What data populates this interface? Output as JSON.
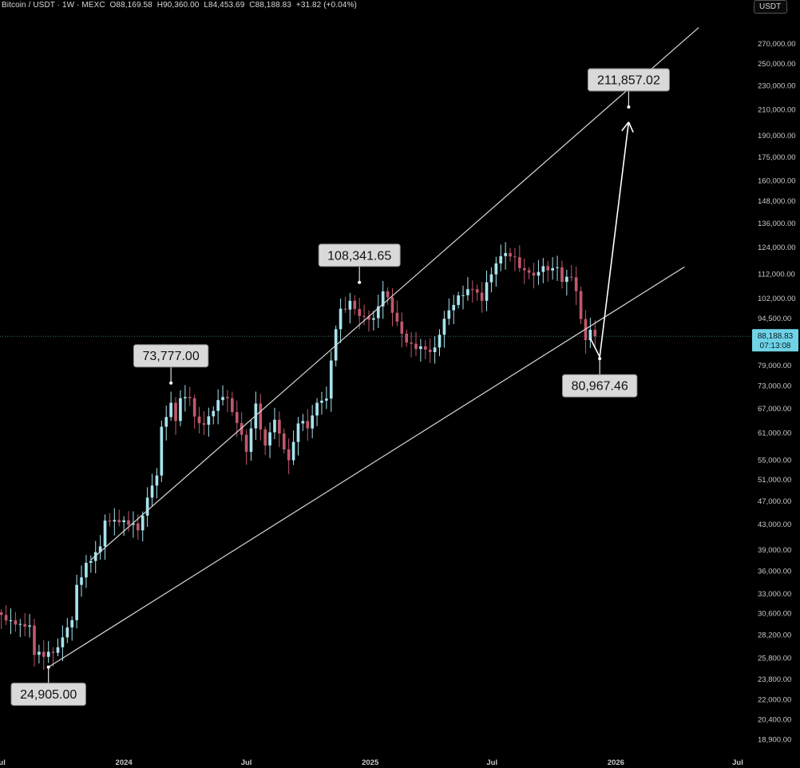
{
  "header": {
    "symbol": "Bitcoin / USDT · 1W · MEXC",
    "open": "O88,169.58",
    "high": "H90,360.00",
    "low": "L84,453.69",
    "close": "C88,188.83",
    "change": "+31.82 (+0.04%)"
  },
  "currency_button": "USDT",
  "current_price": {
    "value": "88,188.83",
    "countdown": "07:13:08",
    "color": "#6fd3e6"
  },
  "colors": {
    "background": "#000000",
    "up_candle": "#a7e3ee",
    "down_candle": "#c0586c",
    "channel_line": "#d9d9d9",
    "callout_fill": "#d9d9d9"
  },
  "chart_data": {
    "type": "candlestick",
    "title": "",
    "y_scale": "log",
    "ylim": [
      18000,
      300000
    ],
    "x_range": [
      "2023-07-01",
      "2026-07-20"
    ],
    "y_tick_labels": [
      "270,000.00",
      "250,000.00",
      "230,000.00",
      "210,000.00",
      "190,000.00",
      "175,000.00",
      "160,000.00",
      "148,000.00",
      "136,000.00",
      "124,000.00",
      "112,000.00",
      "102,000.00",
      "94,500.00",
      "79,000.00",
      "73,000.00",
      "67,000.00",
      "61,000.00",
      "55,000.00",
      "51,000.00",
      "47,000.00",
      "43,000.00",
      "39,000.00",
      "36,000.00",
      "33,000.00",
      "30,600.00",
      "28,200.00",
      "25,800.00",
      "23,800.00",
      "22,000.00",
      "20,400.00",
      "18,900.00"
    ],
    "x_tick_labels": [
      "Jul",
      "2024",
      "Jul",
      "2025",
      "Jul",
      "2026",
      "Jul"
    ],
    "x_tick_dates": [
      "2023-07-01",
      "2024-01-01",
      "2024-07-01",
      "2025-01-01",
      "2025-07-01",
      "2026-01-01",
      "2026-07-01"
    ],
    "close_path": [
      [
        "2023-07-03",
        30400
      ],
      [
        "2023-07-24",
        29300
      ],
      [
        "2023-08-14",
        29200
      ],
      [
        "2023-08-21",
        26100
      ],
      [
        "2023-09-04",
        25900
      ],
      [
        "2023-09-18",
        26300
      ],
      [
        "2023-10-02",
        27900
      ],
      [
        "2023-10-16",
        29800
      ],
      [
        "2023-10-23",
        34100
      ],
      [
        "2023-11-06",
        37100
      ],
      [
        "2023-11-27",
        39500
      ],
      [
        "2023-12-04",
        43600
      ],
      [
        "2023-12-18",
        43700
      ],
      [
        "2024-01-08",
        42900
      ],
      [
        "2024-01-22",
        42000
      ],
      [
        "2024-02-05",
        47600
      ],
      [
        "2024-02-19",
        51800
      ],
      [
        "2024-02-26",
        62400
      ],
      [
        "2024-03-11",
        68400
      ],
      [
        "2024-03-18",
        63800
      ],
      [
        "2024-03-25",
        69600
      ],
      [
        "2024-04-08",
        69600
      ],
      [
        "2024-04-15",
        64900
      ],
      [
        "2024-04-29",
        62900
      ],
      [
        "2024-05-13",
        66300
      ],
      [
        "2024-05-20",
        69100
      ],
      [
        "2024-06-03",
        69600
      ],
      [
        "2024-06-17",
        63300
      ],
      [
        "2024-07-01",
        56700
      ],
      [
        "2024-07-15",
        68200
      ],
      [
        "2024-07-29",
        58100
      ],
      [
        "2024-08-12",
        64100
      ],
      [
        "2024-09-02",
        54900
      ],
      [
        "2024-09-16",
        63200
      ],
      [
        "2024-09-30",
        62000
      ],
      [
        "2024-10-14",
        68400
      ],
      [
        "2024-10-28",
        69500
      ],
      [
        "2024-11-04",
        80400
      ],
      [
        "2024-11-11",
        90600
      ],
      [
        "2024-11-18",
        98000
      ],
      [
        "2024-12-02",
        101000
      ],
      [
        "2024-12-16",
        95300
      ],
      [
        "2025-01-06",
        94500
      ],
      [
        "2025-01-20",
        104700
      ],
      [
        "2025-02-03",
        96500
      ],
      [
        "2025-02-24",
        86100
      ],
      [
        "2025-03-10",
        84000
      ],
      [
        "2025-04-07",
        84500
      ],
      [
        "2025-04-21",
        94300
      ],
      [
        "2025-05-12",
        103100
      ],
      [
        "2025-05-26",
        105600
      ],
      [
        "2025-06-16",
        101000
      ],
      [
        "2025-06-23",
        108400
      ],
      [
        "2025-07-14",
        119800
      ],
      [
        "2025-08-04",
        119300
      ],
      [
        "2025-08-18",
        113500
      ],
      [
        "2025-09-01",
        111200
      ],
      [
        "2025-09-15",
        115300
      ],
      [
        "2025-10-06",
        114800
      ],
      [
        "2025-10-13",
        108600
      ],
      [
        "2025-10-27",
        110500
      ],
      [
        "2025-11-03",
        104800
      ],
      [
        "2025-11-10",
        94200
      ],
      [
        "2025-11-17",
        86900
      ],
      [
        "2025-11-24",
        90400
      ],
      [
        "2025-12-01",
        88188.83
      ]
    ],
    "channel": {
      "upper": [
        [
          "2023-11-13",
          37500
        ],
        [
          "2026-05-04",
          287000
        ]
      ],
      "lower": [
        [
          "2023-09-11",
          24905
        ],
        [
          "2026-04-13",
          115000
        ]
      ]
    },
    "annotations": [
      {
        "label": "211,857.02",
        "date": "2026-01-20",
        "value": 211857.02,
        "position": "above"
      },
      {
        "label": "108,341.65",
        "date": "2024-12-16",
        "value": 108341.65,
        "position": "above"
      },
      {
        "label": "73,777.00",
        "date": "2024-03-11",
        "value": 73777,
        "position": "above"
      },
      {
        "label": "80,967.46",
        "date": "2025-12-08",
        "value": 80967.46,
        "position": "below"
      },
      {
        "label": "24,905.00",
        "date": "2023-09-11",
        "value": 24905,
        "position": "below"
      }
    ],
    "projection_arrow": {
      "from": [
        "2025-11-24",
        87500
      ],
      "via": [
        "2025-12-08",
        81500
      ],
      "to": [
        "2026-01-20",
        200000
      ]
    }
  }
}
